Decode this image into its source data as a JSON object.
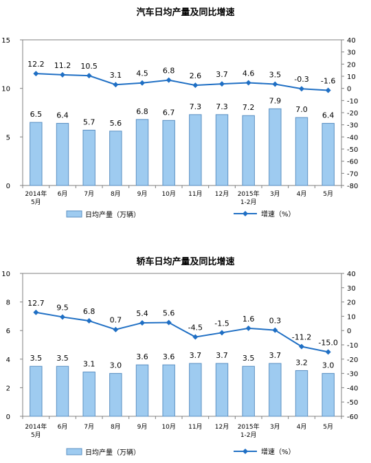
{
  "chart_data": [
    {
      "type": "bar",
      "title": "汽车日均产量及同比增速",
      "categories": [
        "2014年\n5月",
        "6月",
        "7月",
        "8月",
        "9月",
        "10月",
        "11月",
        "12月",
        "2015年\n1-2月",
        "3月",
        "4月",
        "5月"
      ],
      "series": [
        {
          "name": "日均产量（万辆）",
          "type": "bar",
          "axis": "left",
          "values": [
            6.5,
            6.4,
            5.7,
            5.6,
            6.8,
            6.7,
            7.3,
            7.3,
            7.2,
            7.9,
            7.0,
            6.4
          ],
          "labels": [
            "6.5",
            "6.4",
            "5.7",
            "5.6",
            "6.8",
            "6.7",
            "7.3",
            "7.3",
            "7.2",
            "7.9",
            "7.0",
            "6.4"
          ]
        },
        {
          "name": "增速（%）",
          "type": "line",
          "axis": "right",
          "values": [
            12.2,
            11.2,
            10.5,
            3.1,
            4.5,
            6.8,
            2.6,
            3.7,
            4.6,
            3.5,
            -0.3,
            -1.6
          ],
          "labels": [
            "12.2",
            "11.2",
            "10.5",
            "3.1",
            "4.5",
            "6.8",
            "2.6",
            "3.7",
            "4.6",
            "3.5",
            "-0.3",
            "-1.6"
          ]
        }
      ],
      "y_left": {
        "min": 0,
        "max": 15,
        "ticks": [
          "0",
          "5",
          "10",
          "15"
        ]
      },
      "y_right": {
        "min": -80,
        "max": 40,
        "ticks": [
          "40",
          "30",
          "20",
          "10",
          "0",
          "-10",
          "-20",
          "-30",
          "-40",
          "-50",
          "-60",
          "-70",
          "-80"
        ]
      },
      "grid": false,
      "legend": "bottom",
      "colors": {
        "bar_fill": "#9ecbf0",
        "bar_stroke": "#5a8fc2",
        "line": "#1f6fc4"
      }
    },
    {
      "type": "bar",
      "title": "轿车日均产量及同比增速",
      "categories": [
        "2014年\n5月",
        "6月",
        "7月",
        "8月",
        "9月",
        "10月",
        "11月",
        "12月",
        "2015年\n1-2月",
        "3月",
        "4月",
        "5月"
      ],
      "series": [
        {
          "name": "日均产量（万辆）",
          "type": "bar",
          "axis": "left",
          "values": [
            3.5,
            3.5,
            3.1,
            3.0,
            3.6,
            3.6,
            3.7,
            3.7,
            3.5,
            3.7,
            3.2,
            3.0
          ],
          "labels": [
            "3.5",
            "3.5",
            "3.1",
            "3.0",
            "3.6",
            "3.6",
            "3.7",
            "3.7",
            "3.5",
            "3.7",
            "3.2",
            "3.0"
          ]
        },
        {
          "name": "增速（%）",
          "type": "line",
          "axis": "right",
          "values": [
            12.7,
            9.5,
            6.8,
            0.7,
            5.4,
            5.6,
            -4.5,
            -1.5,
            1.6,
            0.3,
            -11.2,
            -15.0
          ],
          "labels": [
            "12.7",
            "9.5",
            "6.8",
            "0.7",
            "5.4",
            "5.6",
            "-4.5",
            "-1.5",
            "1.6",
            "0.3",
            "-11.2",
            "-15.0"
          ]
        }
      ],
      "y_left": {
        "min": 0,
        "max": 10,
        "ticks": [
          "0",
          "2",
          "4",
          "6",
          "8",
          "10"
        ]
      },
      "y_right": {
        "min": -60,
        "max": 40,
        "ticks": [
          "40",
          "30",
          "20",
          "10",
          "0",
          "-10",
          "-20",
          "-30",
          "-40",
          "-50",
          "-60"
        ]
      },
      "grid": false,
      "legend": "bottom",
      "colors": {
        "bar_fill": "#9ecbf0",
        "bar_stroke": "#5a8fc2",
        "line": "#1f6fc4"
      }
    }
  ]
}
